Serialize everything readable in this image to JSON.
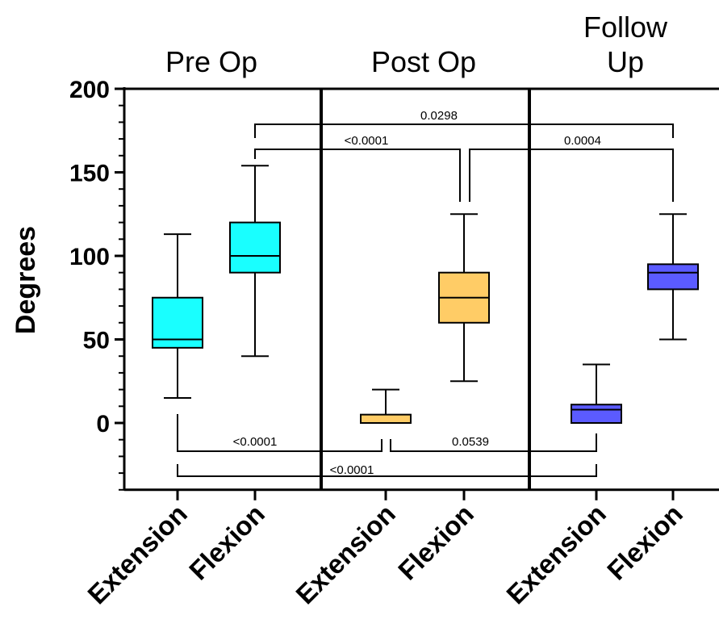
{
  "chart_data": {
    "type": "box",
    "ylabel": "Degrees",
    "ylim": [
      -40,
      200
    ],
    "yticks": [
      0,
      50,
      100,
      150,
      200
    ],
    "y_minor_step": 10,
    "groups": [
      {
        "label_lines": [
          "Pre Op"
        ]
      },
      {
        "label_lines": [
          "Post Op"
        ]
      },
      {
        "label_lines": [
          "Follow",
          "Up"
        ]
      }
    ],
    "boxes": [
      {
        "group": 0,
        "category": "Extension",
        "color": "#19FFFF",
        "whisker_low": 15,
        "q1": 45,
        "median": 50,
        "q3": 75,
        "whisker_high": 113
      },
      {
        "group": 0,
        "category": "Flexion",
        "color": "#19FFFF",
        "whisker_low": 40,
        "q1": 90,
        "median": 100,
        "q3": 120,
        "whisker_high": 154
      },
      {
        "group": 1,
        "category": "Extension",
        "color": "#FFCC66",
        "whisker_low": 0,
        "q1": 0,
        "median": 0,
        "q3": 5,
        "whisker_high": 20
      },
      {
        "group": 1,
        "category": "Flexion",
        "color": "#FFCC66",
        "whisker_low": 25,
        "q1": 60,
        "median": 75,
        "q3": 90,
        "whisker_high": 125
      },
      {
        "group": 2,
        "category": "Extension",
        "color": "#5B5BFF",
        "whisker_low": 0,
        "q1": 0,
        "median": 8,
        "q3": 11,
        "whisker_high": 35
      },
      {
        "group": 2,
        "category": "Flexion",
        "color": "#5B5BFF",
        "whisker_low": 50,
        "q1": 80,
        "median": 90,
        "q3": 95,
        "whisker_high": 125
      }
    ],
    "comparisons": [
      {
        "from": "Pre Op Flexion",
        "to": "Follow Up Flexion",
        "p": "0.0298"
      },
      {
        "from": "Pre Op Flexion",
        "to": "Post Op Flexion",
        "p": "<0.0001"
      },
      {
        "from": "Post Op Flexion",
        "to": "Follow Up Flexion",
        "p": "0.0004"
      },
      {
        "from": "Pre Op Extension",
        "to": "Post Op Extension",
        "p": "<0.0001"
      },
      {
        "from": "Post Op Extension",
        "to": "Follow Up Extension",
        "p": "0.0539"
      },
      {
        "from": "Pre Op Extension",
        "to": "Follow Up Extension",
        "p": "<0.0001"
      }
    ]
  }
}
